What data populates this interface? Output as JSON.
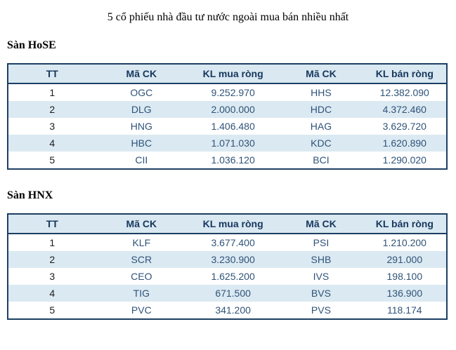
{
  "page": {
    "title": "5 cổ phiếu nhà đầu tư nước ngoài mua bán nhiều nhất"
  },
  "tables": [
    {
      "section": "Sàn HoSE",
      "headers": [
        "TT",
        "Mã CK",
        "KL mua ròng",
        "Mã CK",
        "KL bán ròng"
      ],
      "rows": [
        [
          "1",
          "OGC",
          "9.252.970",
          "HHS",
          "12.382.090"
        ],
        [
          "2",
          "DLG",
          "2.000.000",
          "HDC",
          "4.372.460"
        ],
        [
          "3",
          "HNG",
          "1.406.480",
          "HAG",
          "3.629.720"
        ],
        [
          "4",
          "HBC",
          "1.071.030",
          "KDC",
          "1.620.890"
        ],
        [
          "5",
          "CII",
          "1.036.120",
          "BCI",
          "1.290.020"
        ]
      ]
    },
    {
      "section": "Sàn HNX",
      "headers": [
        "TT",
        "Mã CK",
        "KL mua ròng",
        "Mã CK",
        "KL bán ròng"
      ],
      "rows": [
        [
          "1",
          "KLF",
          "3.677.400",
          "PSI",
          "1.210.200"
        ],
        [
          "2",
          "SCR",
          "3.230.900",
          "SHB",
          "291.000"
        ],
        [
          "3",
          "CEO",
          "1.625.200",
          "IVS",
          "198.100"
        ],
        [
          "4",
          "TIG",
          "671.500",
          "BVS",
          "136.900"
        ],
        [
          "5",
          "PVC",
          "341.200",
          "PVS",
          "118.174"
        ]
      ]
    }
  ],
  "colors": {
    "header_bg": "#d9e8f1",
    "stripe_bg": "#dbe9f2",
    "border": "#1c3f63",
    "header_text": "#17375d",
    "data_text": "#2f5378",
    "rank_text": "#1c1c1c"
  }
}
